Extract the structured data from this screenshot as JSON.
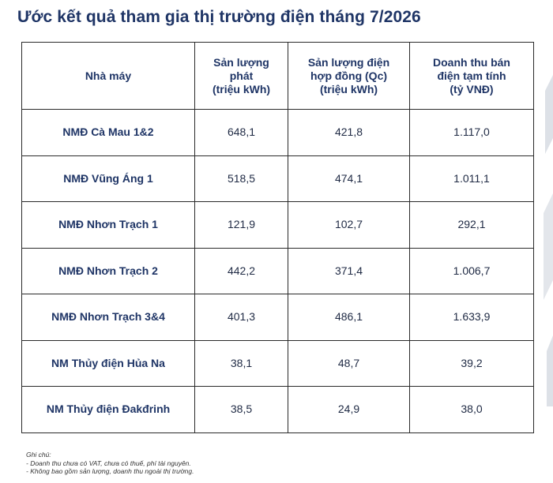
{
  "title": "Ước kết quả tham gia thị trường điện tháng 7/2026",
  "table": {
    "headers": [
      {
        "lines": [
          "Nhà máy"
        ]
      },
      {
        "lines": [
          "Sản lượng",
          "phát",
          "(triệu kWh)"
        ]
      },
      {
        "lines": [
          "Sản lượng điện",
          "hợp đồng (Qc)",
          "(triệu kWh)"
        ]
      },
      {
        "lines": [
          "Doanh thu bán",
          "điện tạm tính",
          "(tỷ VNĐ)"
        ]
      }
    ],
    "rows": [
      {
        "plant": "NMĐ Cà Mau 1&2",
        "output": "648,1",
        "contract": "421,8",
        "revenue": "1.117,0"
      },
      {
        "plant": "NMĐ Vũng Áng 1",
        "output": "518,5",
        "contract": "474,1",
        "revenue": "1.011,1"
      },
      {
        "plant": "NMĐ Nhơn Trạch 1",
        "output": "121,9",
        "contract": "102,7",
        "revenue": "292,1"
      },
      {
        "plant": "NMĐ Nhơn Trạch 2",
        "output": "442,2",
        "contract": "371,4",
        "revenue": "1.006,7"
      },
      {
        "plant": "NMĐ Nhơn Trạch 3&4",
        "output": "401,3",
        "contract": "486,1",
        "revenue": "1.633,9"
      },
      {
        "plant": "NM Thủy điện Hủa Na",
        "output": "38,1",
        "contract": "48,7",
        "revenue": "39,2"
      },
      {
        "plant": "NM Thủy điện Đakđrinh",
        "output": "38,5",
        "contract": "24,9",
        "revenue": "38,0"
      }
    ]
  },
  "notes": {
    "heading": "Ghi chú:",
    "items": [
      "- Doanh thu chưa có VAT, chưa có thuế, phí tài nguyên.",
      "- Không bao gồm sản lượng, doanh thu ngoài thị trường."
    ]
  },
  "colors": {
    "title": "#1f3566",
    "decoration": "#d5d9e0"
  }
}
